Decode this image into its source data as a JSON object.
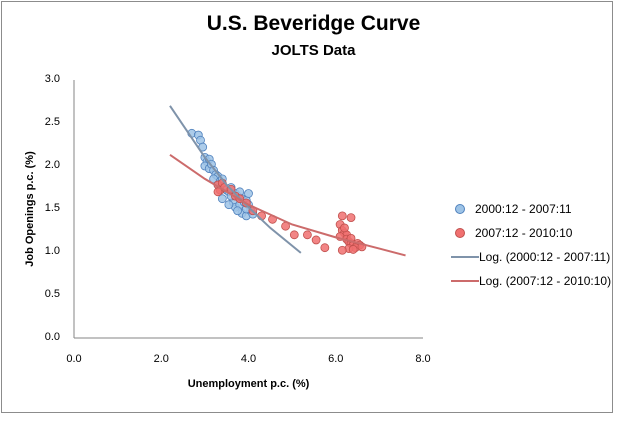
{
  "chart_data": {
    "type": "scatter",
    "title": "U.S. Beveridge Curve",
    "subtitle": "JOLTS Data",
    "xlabel": "Unemployment p.c. (%)",
    "ylabel": "Job Openings p.c. (%)",
    "xlim": [
      0,
      8
    ],
    "ylim": [
      0,
      3
    ],
    "x_ticks": [
      "0.0",
      "2.0",
      "4.0",
      "6.0",
      "8.0"
    ],
    "y_ticks": [
      "0.0",
      "0.5",
      "1.0",
      "1.5",
      "2.0",
      "2.5",
      "3.0"
    ],
    "grid": false,
    "legend_position": "right",
    "series": [
      {
        "name": "2000:12 - 2007:11",
        "kind": "scatter",
        "color": "#9dc3e6",
        "edge": "#4f81bd",
        "points": [
          [
            2.7,
            2.38
          ],
          [
            2.85,
            2.36
          ],
          [
            2.9,
            2.3
          ],
          [
            2.95,
            2.22
          ],
          [
            3.0,
            2.1
          ],
          [
            3.05,
            2.05
          ],
          [
            3.1,
            2.08
          ],
          [
            3.0,
            2.0
          ],
          [
            3.1,
            1.97
          ],
          [
            3.15,
            2.02
          ],
          [
            3.2,
            1.95
          ],
          [
            3.25,
            1.9
          ],
          [
            3.3,
            1.88
          ],
          [
            3.2,
            1.85
          ],
          [
            3.35,
            1.82
          ],
          [
            3.4,
            1.85
          ],
          [
            3.3,
            1.78
          ],
          [
            3.45,
            1.75
          ],
          [
            3.5,
            1.72
          ],
          [
            3.55,
            1.7
          ],
          [
            3.6,
            1.75
          ],
          [
            3.7,
            1.68
          ],
          [
            3.75,
            1.65
          ],
          [
            3.8,
            1.7
          ],
          [
            3.85,
            1.62
          ],
          [
            3.65,
            1.58
          ],
          [
            3.7,
            1.52
          ],
          [
            3.8,
            1.55
          ],
          [
            3.9,
            1.58
          ],
          [
            3.95,
            1.6
          ],
          [
            4.0,
            1.55
          ],
          [
            3.85,
            1.45
          ],
          [
            3.95,
            1.42
          ],
          [
            4.05,
            1.48
          ],
          [
            4.1,
            1.44
          ],
          [
            3.75,
            1.48
          ],
          [
            3.55,
            1.55
          ],
          [
            3.4,
            1.62
          ],
          [
            4.0,
            1.68
          ],
          [
            3.6,
            1.65
          ],
          [
            3.95,
            1.5
          ]
        ]
      },
      {
        "name": "2007:12 - 2010:10",
        "kind": "scatter",
        "color": "#f07070",
        "edge": "#c0504d",
        "points": [
          [
            3.3,
            1.78
          ],
          [
            3.35,
            1.72
          ],
          [
            3.4,
            1.8
          ],
          [
            3.45,
            1.75
          ],
          [
            3.3,
            1.7
          ],
          [
            3.6,
            1.73
          ],
          [
            3.7,
            1.65
          ],
          [
            3.8,
            1.62
          ],
          [
            3.95,
            1.57
          ],
          [
            4.1,
            1.48
          ],
          [
            4.3,
            1.42
          ],
          [
            4.55,
            1.38
          ],
          [
            4.85,
            1.3
          ],
          [
            5.05,
            1.2
          ],
          [
            5.35,
            1.2
          ],
          [
            5.55,
            1.14
          ],
          [
            5.75,
            1.05
          ],
          [
            6.15,
            1.42
          ],
          [
            6.35,
            1.4
          ],
          [
            6.1,
            1.32
          ],
          [
            6.15,
            1.25
          ],
          [
            6.2,
            1.22
          ],
          [
            6.25,
            1.2
          ],
          [
            6.1,
            1.18
          ],
          [
            6.25,
            1.15
          ],
          [
            6.3,
            1.12
          ],
          [
            6.35,
            1.1
          ],
          [
            6.4,
            1.08
          ],
          [
            6.5,
            1.1
          ],
          [
            6.55,
            1.08
          ],
          [
            6.45,
            1.05
          ],
          [
            6.3,
            1.04
          ],
          [
            6.15,
            1.02
          ],
          [
            6.4,
            1.03
          ],
          [
            6.6,
            1.06
          ],
          [
            6.2,
            1.28
          ],
          [
            6.35,
            1.16
          ]
        ]
      },
      {
        "name": "Log. (2000:12 - 2007:11)",
        "kind": "trendline",
        "color": "#7f93aa",
        "points": [
          [
            2.2,
            2.7
          ],
          [
            2.6,
            2.4
          ],
          [
            3.0,
            2.1
          ],
          [
            3.5,
            1.78
          ],
          [
            4.0,
            1.52
          ],
          [
            4.5,
            1.28
          ],
          [
            5.2,
            0.99
          ]
        ]
      },
      {
        "name": "Log. (2007:12 - 2010:10)",
        "kind": "trendline",
        "color": "#cc6b6b",
        "points": [
          [
            2.2,
            2.13
          ],
          [
            3.0,
            1.85
          ],
          [
            4.0,
            1.55
          ],
          [
            5.0,
            1.32
          ],
          [
            6.0,
            1.17
          ],
          [
            7.0,
            1.04
          ],
          [
            7.6,
            0.96
          ]
        ]
      }
    ]
  },
  "legend": {
    "items": [
      {
        "label": "2000:12 - 2007:11",
        "type": "dot",
        "color": "#9dc3e6",
        "edge": "#4f81bd"
      },
      {
        "label": "2007:12 - 2010:10",
        "type": "dot",
        "color": "#f07070",
        "edge": "#c0504d"
      },
      {
        "label": "Log. (2000:12 - 2007:11)",
        "type": "line",
        "color": "#7f93aa"
      },
      {
        "label": "Log. (2007:12 - 2010:10)",
        "type": "line",
        "color": "#cc6b6b"
      }
    ]
  }
}
